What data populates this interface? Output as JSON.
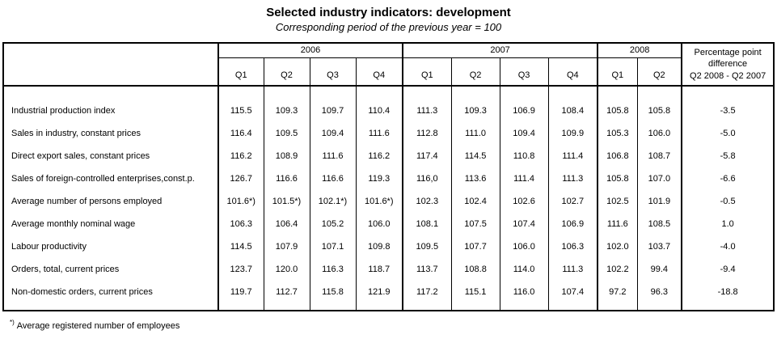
{
  "chart_data": {
    "type": "table",
    "title": "Selected industry indicators: development",
    "subtitle": "Corresponding period of the previous year = 100",
    "year_groups": [
      {
        "label": "2006",
        "quarters": [
          "Q1",
          "Q2",
          "Q3",
          "Q4"
        ]
      },
      {
        "label": "2007",
        "quarters": [
          "Q1",
          "Q2",
          "Q3",
          "Q4"
        ]
      },
      {
        "label": "2008",
        "quarters": [
          "Q1",
          "Q2"
        ]
      }
    ],
    "last_column_header": "Percentage point\ndifference\nQ2 2008 - Q2 2007",
    "rows": [
      {
        "label": "Industrial production index",
        "values": [
          "115.5",
          "109.3",
          "109.7",
          "110.4",
          "111.3",
          "109.3",
          "106.9",
          "108.4",
          "105.8",
          "105.8",
          "-3.5"
        ]
      },
      {
        "label": "Sales in industry, constant prices",
        "values": [
          "116.4",
          "109.5",
          "109.4",
          "111.6",
          "112.8",
          "111.0",
          "109.4",
          "109.9",
          "105.3",
          "106.0",
          "-5.0"
        ]
      },
      {
        "label": "Direct export sales, constant prices",
        "values": [
          "116.2",
          "108.9",
          "111.6",
          "116.2",
          "117.4",
          "114.5",
          "110.8",
          "111.4",
          "106.8",
          "108.7",
          "-5.8"
        ]
      },
      {
        "label": "Sales of foreign-controlled enterprises,const.p.",
        "values": [
          "126.7",
          "116.6",
          "116.6",
          "119.3",
          "116,0",
          "113.6",
          "111.4",
          "111.3",
          "105.8",
          "107.0",
          "-6.6"
        ]
      },
      {
        "label": "Average number of persons employed",
        "values": [
          "101.6*)",
          "101.5*)",
          "102.1*)",
          "101.6*)",
          "102.3",
          "102.4",
          "102.6",
          "102.7",
          "102.5",
          "101.9",
          "-0.5"
        ]
      },
      {
        "label": "Average monthly nominal wage",
        "values": [
          "106.3",
          "106.4",
          "105.2",
          "106.0",
          "108.1",
          "107.5",
          "107.4",
          "106.9",
          "111.6",
          "108.5",
          "1.0"
        ]
      },
      {
        "label": "Labour productivity",
        "values": [
          "114.5",
          "107.9",
          "107.1",
          "109.8",
          "109.5",
          "107.7",
          "106.0",
          "106.3",
          "102.0",
          "103.7",
          "-4.0"
        ]
      },
      {
        "label": "Orders, total, current prices",
        "values": [
          "123.7",
          "120.0",
          "116.3",
          "118.7",
          "113.7",
          "108.8",
          "114.0",
          "111.3",
          "102.2",
          "99.4",
          "-9.4"
        ]
      },
      {
        "label": "Non-domestic orders, current prices",
        "values": [
          "119.7",
          "112.7",
          "115.8",
          "121.9",
          "117.2",
          "115.1",
          "116.0",
          "107.4",
          "97.2",
          "96.3",
          "-18.8"
        ]
      }
    ],
    "footnote_marker": "*)",
    "footnote_text": "Average registered number of employees"
  }
}
